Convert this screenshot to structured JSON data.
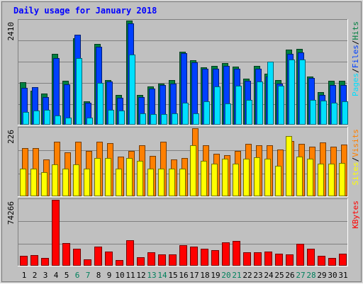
{
  "chart_data": {
    "type": "bar",
    "title": "Daily usage for January 2018",
    "categories": [
      "1",
      "2",
      "3",
      "4",
      "5",
      "6",
      "7",
      "8",
      "9",
      "10",
      "11",
      "12",
      "13",
      "14",
      "15",
      "16",
      "17",
      "18",
      "19",
      "20",
      "21",
      "22",
      "23",
      "24",
      "25",
      "26",
      "27",
      "28",
      "29",
      "30",
      "31"
    ],
    "weekend_days": [
      6,
      7,
      13,
      14,
      20,
      21,
      27,
      28
    ],
    "panels": [
      {
        "id": "top",
        "ymax_label": "2410",
        "ymax": 2410,
        "side_labels": [
          "Pages",
          "Files",
          "Hits"
        ],
        "series": [
          {
            "name": "Hits",
            "color": "#008040",
            "values": [
              970,
              770,
              710,
              1630,
              1010,
              1991,
              525,
              1870,
              1027,
              685,
              2410,
              683,
              876,
              948,
              1023,
              1677,
              1488,
              1324,
              1349,
              1413,
              1342,
              1057,
              1349,
              1179,
              1023,
              1725,
              1742,
              1100,
              739,
              1010,
              1010
            ]
          },
          {
            "name": "Files",
            "color": "#0040ff",
            "values": [
              838,
              856,
              622,
              1540,
              930,
              2080,
              494,
              1795,
              987,
              618,
              2350,
              631,
              822,
              905,
              942,
              1650,
              1439,
              1288,
              1288,
              1349,
              1295,
              1015,
              1295,
              1112,
              942,
              1632,
              1666,
              1076,
              676,
              905,
              905
            ]
          },
          {
            "name": "Pages",
            "color": "#00e0ff",
            "values": [
              283,
              307,
              337,
              197,
              143,
              1540,
              143,
              964,
              337,
              307,
              1623,
              244,
              234,
              234,
              244,
              502,
              246,
              528,
              882,
              486,
              897,
              559,
              991,
              1455,
              897,
              1500,
              1510,
              559,
              551,
              493,
              529
            ]
          }
        ]
      },
      {
        "id": "middle",
        "ymax_label": "226",
        "ymax": 226,
        "side_labels": [
          "Sites",
          "Visits"
        ],
        "series": [
          {
            "name": "Visits",
            "color": "#ff8000",
            "values": [
              159,
              159,
              121,
              181,
              145,
              181,
              150,
              181,
              176,
              131,
              150,
              169,
              133,
              181,
              121,
              126,
              226,
              169,
              141,
              136,
              150,
              173,
              169,
              169,
              154,
              183,
              173,
              164,
              178,
              164,
              172
            ]
          },
          {
            "name": "Sites",
            "color": "#ffff00",
            "values": [
              90,
              90,
              78,
              105,
              90,
              105,
              90,
              125,
              126,
              90,
              127,
              117,
              90,
              90,
              90,
              90,
              168,
              117,
              108,
              124,
              107,
              124,
              129,
              124,
              99,
              200,
              132,
              124,
              107,
              107,
              110
            ]
          }
        ]
      },
      {
        "id": "bottom",
        "ymax_label": "74266",
        "ymax": 74266,
        "side_labels": [
          "KBytes"
        ],
        "series": [
          {
            "name": "KBytes",
            "color": "#ff0000",
            "values": [
              10400,
              11200,
              8200,
              74266,
              25300,
              18600,
              6700,
              21300,
              15700,
              5700,
              28400,
              8700,
              14300,
              11800,
              12200,
              22700,
              21300,
              18600,
              17300,
              26000,
              27600,
              14300,
              14300,
              15700,
              13000,
              11800,
              24000,
              18700,
              10400,
              8300,
              13000
            ]
          }
        ]
      }
    ]
  }
}
